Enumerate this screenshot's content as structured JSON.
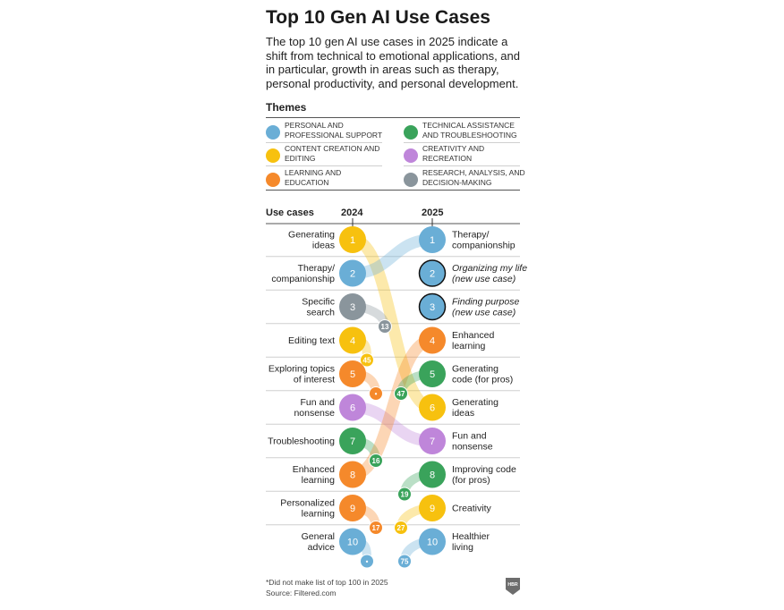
{
  "title": "Top 10 Gen AI Use Cases",
  "subtitle": "The top 10 gen AI use cases in 2025 indicate a shift from technical to emotional applications, and in particular, growth in areas such as therapy, personal productivity, and personal development.",
  "themes_title": "Themes",
  "themes": [
    {
      "key": "personal",
      "label": "PERSONAL AND PROFESSIONAL SUPPORT",
      "color": "#6aaed6"
    },
    {
      "key": "technical",
      "label": "TECHNICAL ASSISTANCE AND TROUBLESHOOTING",
      "color": "#3aa35b"
    },
    {
      "key": "content",
      "label": "CONTENT CREATION AND EDITING",
      "color": "#f7c10f"
    },
    {
      "key": "creativity",
      "label": "CREATIVITY AND RECREATION",
      "color": "#bf86da"
    },
    {
      "key": "learning",
      "label": "LEARNING AND EDUCATION",
      "color": "#f5892b"
    },
    {
      "key": "research",
      "label": "RESEARCH, ANALYSIS, AND DECISION-MAKING",
      "color": "#8a959c"
    }
  ],
  "headers": {
    "use_cases": "Use cases",
    "y2024": "2024",
    "y2025": "2025"
  },
  "chart_data": {
    "type": "table",
    "title": "Top 10 Gen AI Use Cases",
    "columns": [
      "2024",
      "2025"
    ],
    "ranks_2024": [
      {
        "rank": "1",
        "label": "Generating ideas",
        "theme": "content",
        "rank_2025": "6"
      },
      {
        "rank": "2",
        "label": "Therapy/ companionship",
        "theme": "personal",
        "rank_2025": "1"
      },
      {
        "rank": "3",
        "label": "Specific search",
        "theme": "research",
        "rank_2025": "13"
      },
      {
        "rank": "4",
        "label": "Editing text",
        "theme": "content",
        "rank_2025": "45"
      },
      {
        "rank": "5",
        "label": "Exploring topics of interest",
        "theme": "learning",
        "rank_2025": "•"
      },
      {
        "rank": "6",
        "label": "Fun and nonsense",
        "theme": "creativity",
        "rank_2025": "7"
      },
      {
        "rank": "7",
        "label": "Troubleshooting",
        "theme": "technical",
        "rank_2025": "16"
      },
      {
        "rank": "8",
        "label": "Enhanced learning",
        "theme": "learning",
        "rank_2025": "4"
      },
      {
        "rank": "9",
        "label": "Personalized learning",
        "theme": "learning",
        "rank_2025": "17"
      },
      {
        "rank": "10",
        "label": "General advice",
        "theme": "personal",
        "rank_2025": "•"
      }
    ],
    "ranks_2025": [
      {
        "rank": "1",
        "label": "Therapy/ companionship",
        "theme": "personal",
        "rank_2024": "2",
        "new": false
      },
      {
        "rank": "2",
        "label": "Organizing my life (new use case)",
        "theme": "personal",
        "rank_2024": "",
        "new": true
      },
      {
        "rank": "3",
        "label": "Finding purpose (new use case)",
        "theme": "personal",
        "rank_2024": "",
        "new": true
      },
      {
        "rank": "4",
        "label": "Enhanced learning",
        "theme": "learning",
        "rank_2024": "8",
        "new": false
      },
      {
        "rank": "5",
        "label": "Generating code (for pros)",
        "theme": "technical",
        "rank_2024": "47",
        "new": false
      },
      {
        "rank": "6",
        "label": "Generating ideas",
        "theme": "content",
        "rank_2024": "1",
        "new": false
      },
      {
        "rank": "7",
        "label": "Fun and nonsense",
        "theme": "creativity",
        "rank_2024": "6",
        "new": false
      },
      {
        "rank": "8",
        "label": "Improving code (for pros)",
        "theme": "technical",
        "rank_2024": "19",
        "new": false
      },
      {
        "rank": "9",
        "label": "Creativity",
        "theme": "content",
        "rank_2024": "27",
        "new": false
      },
      {
        "rank": "10",
        "label": "Healthier living",
        "theme": "personal",
        "rank_2024": "75",
        "new": false
      }
    ]
  },
  "footnote": "*Did not make list of top 100 in 2025",
  "source": "Source: Filtered.com",
  "logo_text": "HBR"
}
